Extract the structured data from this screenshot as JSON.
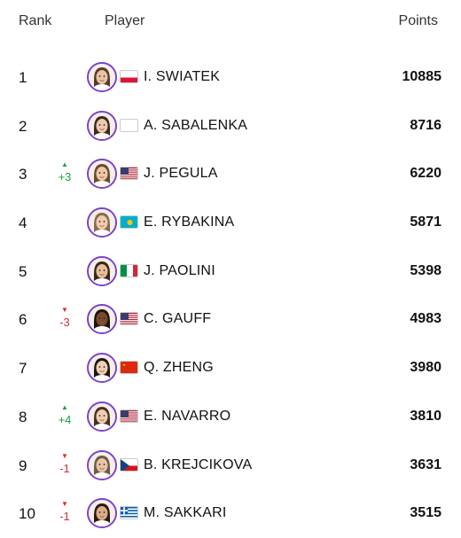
{
  "header": {
    "rank": "Rank",
    "player": "Player",
    "points": "Points"
  },
  "rows": [
    {
      "rank": "1",
      "change": "",
      "trend": "none",
      "name": "I. SWIATEK",
      "points": "10885",
      "flag": "pl",
      "skin": "#e9c3a6",
      "hair": "#5a3a24"
    },
    {
      "rank": "2",
      "change": "",
      "trend": "none",
      "name": "A. SABALENKA",
      "points": "8716",
      "flag": "blank",
      "skin": "#efc9ae",
      "hair": "#3a2a1f"
    },
    {
      "rank": "3",
      "change": "+3",
      "trend": "up",
      "name": "J. PEGULA",
      "points": "6220",
      "flag": "us",
      "skin": "#eec7a8",
      "hair": "#6b4a2d"
    },
    {
      "rank": "4",
      "change": "",
      "trend": "none",
      "name": "E. RYBAKINA",
      "points": "5871",
      "flag": "kz",
      "skin": "#efccb2",
      "hair": "#8a6b4f"
    },
    {
      "rank": "5",
      "change": "",
      "trend": "none",
      "name": "J. PAOLINI",
      "points": "5398",
      "flag": "it",
      "skin": "#e7bf9e",
      "hair": "#3b2618"
    },
    {
      "rank": "6",
      "change": "-3",
      "trend": "down",
      "name": "C. GAUFF",
      "points": "4983",
      "flag": "us",
      "skin": "#7a4a2c",
      "hair": "#1d130d"
    },
    {
      "rank": "7",
      "change": "",
      "trend": "none",
      "name": "Q. ZHENG",
      "points": "3980",
      "flag": "cn",
      "skin": "#efcfb5",
      "hair": "#1f1611"
    },
    {
      "rank": "8",
      "change": "+4",
      "trend": "up",
      "name": "E. NAVARRO",
      "points": "3810",
      "flag": "us",
      "skin": "#f0cdb1",
      "hair": "#4a3020"
    },
    {
      "rank": "9",
      "change": "-1",
      "trend": "down",
      "name": "B. KREJCIKOVA",
      "points": "3631",
      "flag": "cz",
      "skin": "#e9c4a6",
      "hair": "#6d5a44"
    },
    {
      "rank": "10",
      "change": "-1",
      "trend": "down",
      "name": "M. SAKKARI",
      "points": "3515",
      "flag": "gr",
      "skin": "#dcae88",
      "hair": "#2a1a10"
    }
  ],
  "trend_symbols": {
    "up": "▲",
    "down": "▼"
  },
  "colors": {
    "avatar_ring": "#7b3fd0",
    "up": "#1e9e3e",
    "down": "#d32f2f"
  }
}
